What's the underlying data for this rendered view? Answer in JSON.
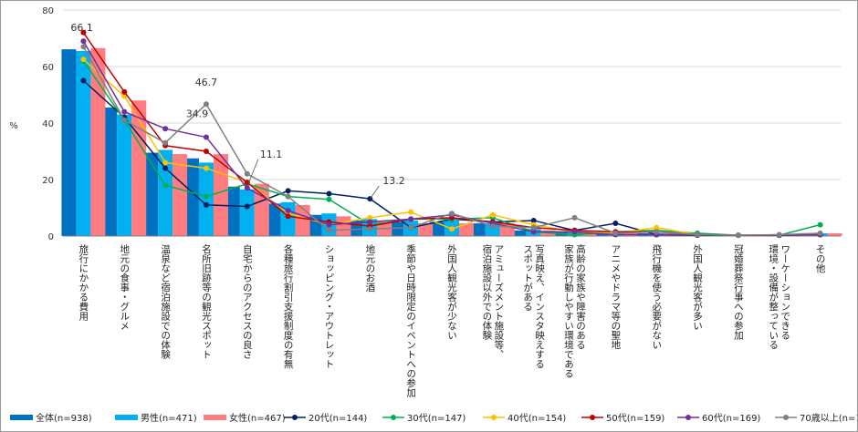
{
  "chart_data": {
    "type": "bar",
    "ylabel": "%",
    "ylim": [
      0,
      80
    ],
    "yticks": [
      0,
      20,
      40,
      60,
      80
    ],
    "categories": [
      [
        "旅行にかかる費用"
      ],
      [
        "地元の食事・グルメ"
      ],
      [
        "温泉など宿泊施設での体験"
      ],
      [
        "名所旧跡等の観光スポット"
      ],
      [
        "自宅からのアクセスの良さ"
      ],
      [
        "各種旅行割引支援制度の有無"
      ],
      [
        "ショッピング・アウトレット"
      ],
      [
        "地元のお酒"
      ],
      [
        "季節や日時限定のイベントへの参加"
      ],
      [
        "外国人観光客が少ない"
      ],
      [
        "アミューズメント施設等、",
        "宿泊施設以外での体験"
      ],
      [
        "写真映え、インスタ映えする",
        "スポットがある"
      ],
      [
        "高齢の家族や障害のある",
        "家族が行動しやすい環境である"
      ],
      [
        "アニメやドラマ等の聖地"
      ],
      [
        "飛行機を使う必要がない"
      ],
      [
        "外国人観光客が多い"
      ],
      [
        "冠婚葬祭行事への参加"
      ],
      [
        "ワーケーションできる",
        "環境・設備が整っている"
      ],
      [
        "その他"
      ]
    ],
    "bar_series": [
      {
        "name": "全体(n=938)",
        "color": "#0070c0",
        "values": [
          66.1,
          45.5,
          29.5,
          27.5,
          17.5,
          11.5,
          7.5,
          5.5,
          5.0,
          5.0,
          4.5,
          2.0,
          1.5,
          1.0,
          1.0,
          0.5,
          0.3,
          0.3,
          1.0
        ]
      },
      {
        "name": "男性(n=471)",
        "color": "#00b0f0",
        "values": [
          65.5,
          43.0,
          30.5,
          26.0,
          16.5,
          12.0,
          8.0,
          6.0,
          5.5,
          5.5,
          4.5,
          2.5,
          1.5,
          1.0,
          1.0,
          0.5,
          0.3,
          0.3,
          1.0
        ]
      },
      {
        "name": "女性(n=467)",
        "color": "#ff7c80",
        "values": [
          66.5,
          48.0,
          29.0,
          29.0,
          18.5,
          11.0,
          7.0,
          5.0,
          4.5,
          4.5,
          4.5,
          2.0,
          1.5,
          1.0,
          1.0,
          0.5,
          0.3,
          0.3,
          1.0
        ]
      }
    ],
    "line_series": [
      {
        "name": "20代(n=144)",
        "color": "#002060",
        "values": [
          55.0,
          42.0,
          24.0,
          11.0,
          10.5,
          16.0,
          15.0,
          13.2,
          3.0,
          6.0,
          5.0,
          5.5,
          2.0,
          4.5,
          0.5,
          0.3,
          0.3,
          0.3,
          0.5
        ]
      },
      {
        "name": "30代(n=147)",
        "color": "#00b050",
        "values": [
          62.0,
          41.0,
          18.0,
          14.0,
          18.5,
          14.0,
          13.0,
          4.0,
          6.0,
          6.0,
          6.5,
          1.5,
          0.5,
          1.5,
          2.0,
          1.0,
          0.3,
          0.3,
          4.0
        ]
      },
      {
        "name": "40代(n=154)",
        "color": "#ffc000",
        "values": [
          62.5,
          49.5,
          26.0,
          24.0,
          19.0,
          8.0,
          4.0,
          6.5,
          8.5,
          2.5,
          7.5,
          4.0,
          1.5,
          1.0,
          3.0,
          0.5,
          0.3,
          0.5,
          0.5
        ]
      },
      {
        "name": "50代(n=159)",
        "color": "#c00000",
        "values": [
          72.0,
          51.0,
          32.0,
          30.0,
          19.0,
          7.0,
          5.0,
          3.5,
          6.0,
          6.5,
          5.0,
          3.0,
          2.0,
          1.5,
          1.5,
          0.5,
          0.3,
          0.3,
          0.5
        ]
      },
      {
        "name": "60代(n=169)",
        "color": "#7030a0",
        "values": [
          69.0,
          44.0,
          38.0,
          35.0,
          17.0,
          9.0,
          4.0,
          5.0,
          6.0,
          7.5,
          4.5,
          1.5,
          1.5,
          0.5,
          0.5,
          0.5,
          0.3,
          0.3,
          0.5
        ]
      },
      {
        "name": "70歳以上(n=165)",
        "color": "#808080",
        "values": [
          67.0,
          41.0,
          33.0,
          46.7,
          22.0,
          14.0,
          2.0,
          2.5,
          3.0,
          8.0,
          3.5,
          3.0,
          6.5,
          1.0,
          1.5,
          0.5,
          0.3,
          0.5,
          1.0
        ]
      }
    ],
    "annotations": [
      {
        "text": "66.1"
      },
      {
        "text": "46.7"
      },
      {
        "text": "34.9"
      },
      {
        "text": "11.1"
      },
      {
        "text": "13.2"
      }
    ]
  }
}
